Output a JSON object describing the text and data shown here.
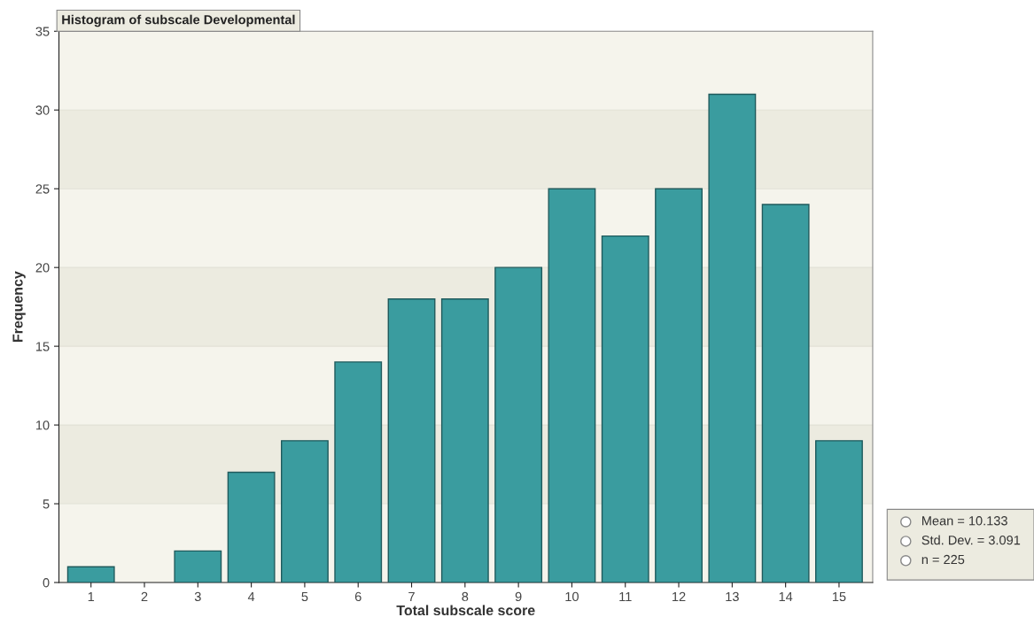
{
  "chart_data": {
    "type": "bar",
    "title": "Histogram of subscale Developmental",
    "xlabel": "Total subscale score",
    "ylabel": "Frequency",
    "categories": [
      "1",
      "2",
      "3",
      "4",
      "5",
      "6",
      "7",
      "8",
      "9",
      "10",
      "11",
      "12",
      "13",
      "14",
      "15"
    ],
    "series": [
      {
        "color": "#3a9c9f",
        "values": [
          1,
          0,
          2,
          7,
          9,
          14,
          18,
          18,
          20,
          25,
          22,
          25,
          31,
          24,
          9
        ]
      }
    ],
    "ylim": [
      0,
      35
    ],
    "yticks": [
      0,
      5,
      10,
      15,
      20,
      25,
      30,
      35
    ],
    "grid": "y",
    "bands": [
      {
        "axis": "y",
        "from": 5,
        "to": 10,
        "color": "#ecebe0"
      },
      {
        "axis": "y",
        "from": 15,
        "to": 20,
        "color": "#ecebe0"
      },
      {
        "axis": "y",
        "from": 25,
        "to": 30,
        "color": "#ecebe0"
      }
    ],
    "annotations": [
      "Mean = 10.133",
      "Std. Dev. = 3.091",
      "n = 225"
    ]
  }
}
